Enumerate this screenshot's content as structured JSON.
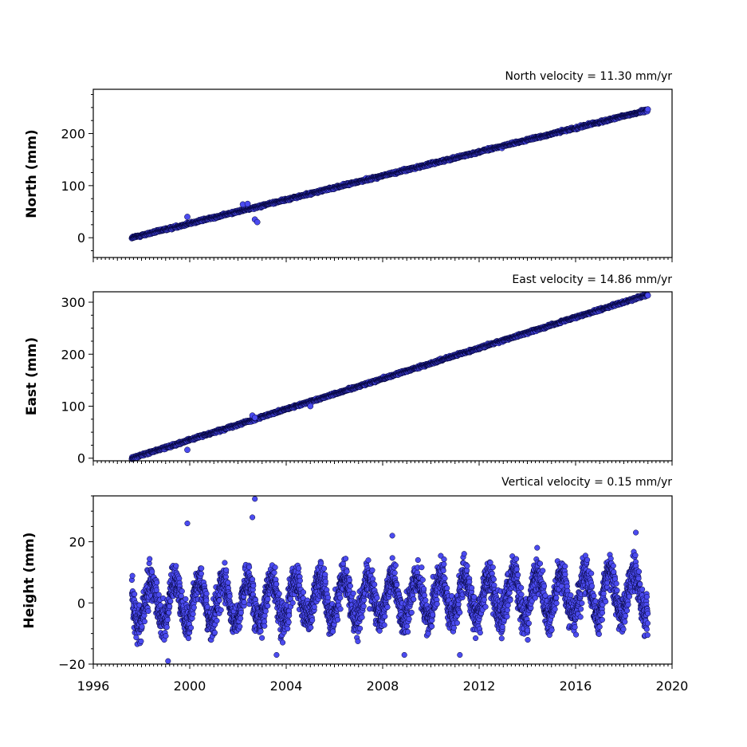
{
  "chart_data": [
    {
      "type": "scatter",
      "title": "North velocity = 11.30 mm/yr",
      "ylabel": "North (mm)",
      "xlim": [
        1996,
        2020
      ],
      "ylim": [
        -38,
        285
      ],
      "yticks": [
        0,
        100,
        200
      ],
      "ytick_labels": [
        "0",
        "100",
        "200"
      ],
      "trend": {
        "x_start": 1997.6,
        "y_start": 0,
        "x_end": 2019.0,
        "y_end": 245
      },
      "anomalies": [
        {
          "x": 1999.9,
          "y": 40
        },
        {
          "x": 2002.2,
          "y": 64
        },
        {
          "x": 2002.4,
          "y": 65
        },
        {
          "x": 2002.7,
          "y": 35
        },
        {
          "x": 2002.8,
          "y": 30
        }
      ],
      "marker_color": "#4b4bf0",
      "edge_color": "#000033"
    },
    {
      "type": "scatter",
      "title": "East velocity = 14.86 mm/yr",
      "ylabel": "East (mm)",
      "xlim": [
        1996,
        2020
      ],
      "ylim": [
        -5,
        320
      ],
      "yticks": [
        0,
        100,
        200,
        300
      ],
      "ytick_labels": [
        "0",
        "100",
        "200",
        "300"
      ],
      "trend": {
        "x_start": 1997.6,
        "y_start": 0,
        "x_end": 2019.0,
        "y_end": 315
      },
      "anomalies": [
        {
          "x": 1999.9,
          "y": 16
        },
        {
          "x": 2002.6,
          "y": 82
        },
        {
          "x": 2002.7,
          "y": 78
        },
        {
          "x": 2005.0,
          "y": 100
        }
      ],
      "marker_color": "#4b4bf0",
      "edge_color": "#000033"
    },
    {
      "type": "scatter",
      "title": "Vertical velocity = 0.15 mm/yr",
      "ylabel": "Height (mm)",
      "xlim": [
        1996,
        2020
      ],
      "ylim": [
        -20,
        35
      ],
      "yticks": [
        -20,
        0,
        20
      ],
      "ytick_labels": [
        "−20",
        "0",
        "20"
      ],
      "xticks": [
        1996,
        2000,
        2004,
        2008,
        2012,
        2016,
        2020
      ],
      "xtick_labels": [
        "1996",
        "2000",
        "2004",
        "2008",
        "2012",
        "2016",
        "2020"
      ],
      "trend": {
        "x_start": 1997.6,
        "y_start": 0,
        "x_end": 2019.0,
        "y_end": 3
      },
      "seasonal_amplitude": 7,
      "noise": 4,
      "anomalies": [
        {
          "x": 2002.7,
          "y": 34
        },
        {
          "x": 2002.6,
          "y": 28
        },
        {
          "x": 1999.9,
          "y": 26
        },
        {
          "x": 2008.4,
          "y": 22
        },
        {
          "x": 1999.1,
          "y": -19
        },
        {
          "x": 2011.2,
          "y": -17
        },
        {
          "x": 2003.6,
          "y": -17
        },
        {
          "x": 2008.9,
          "y": -17
        },
        {
          "x": 2018.5,
          "y": 23
        }
      ],
      "marker_color": "#4b4bf0",
      "edge_color": "#000033"
    }
  ]
}
